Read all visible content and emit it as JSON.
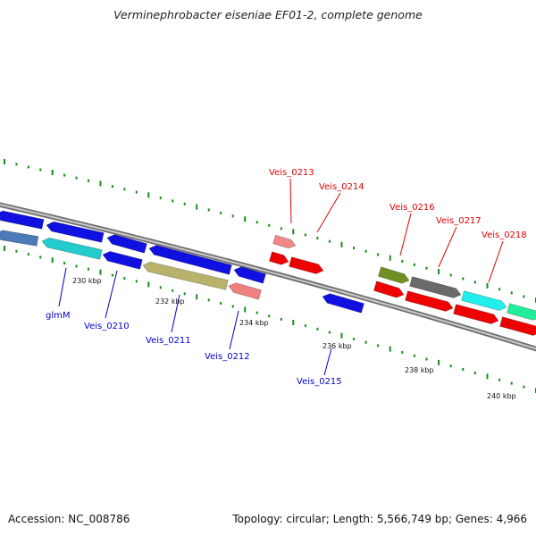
{
  "title": "Verminephrobacter eiseniae EF01-2, complete genome",
  "footer": {
    "accession": "Accession: NC_008786",
    "summary": "Topology: circular; Length: 5,566,749 bp; Genes: 4,966"
  },
  "colors": {
    "forward_label": "#e00000",
    "reverse_label": "#0000cc",
    "tick": "#1a8a1a",
    "backbone": "#888888"
  },
  "kbp_ticks": [
    "230 kbp",
    "232 kbp",
    "234 kbp",
    "236 kbp",
    "238 kbp",
    "240 kbp"
  ],
  "gene_labels": {
    "reverse": [
      "glmM",
      "Veis_0210",
      "Veis_0211",
      "Veis_0212",
      "Veis_0215"
    ],
    "forward": [
      "Veis_0213",
      "Veis_0214",
      "Veis_0216",
      "Veis_0217",
      "Veis_0218"
    ]
  }
}
